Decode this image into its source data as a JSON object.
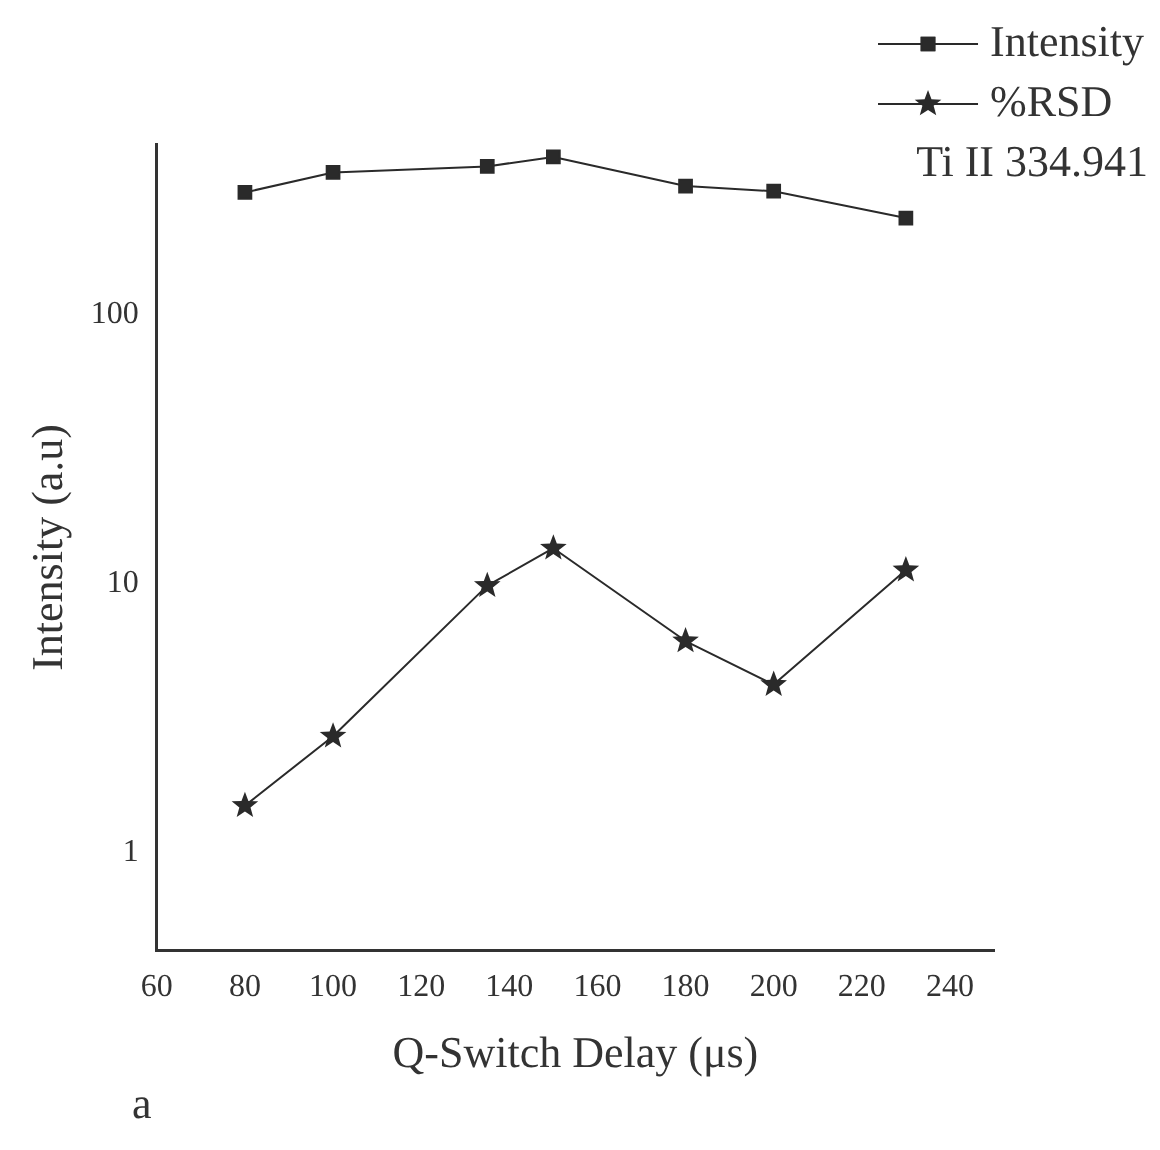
{
  "chart_data": {
    "type": "line",
    "xlabel": "Q-Switch Delay (μs)",
    "ylabel": "Intensity (a.u)",
    "x": [
      80,
      100,
      135,
      150,
      180,
      200,
      230
    ],
    "series": [
      {
        "name": "Intensity",
        "color": "#2a2a2a",
        "marker": "square",
        "values": [
          284,
          337,
          355,
          385,
          300,
          287,
          228
        ]
      },
      {
        "name": "%RSD",
        "color": "#2a2a2a",
        "marker": "star",
        "values": [
          1.49,
          2.7,
          9.8,
          13.5,
          6.1,
          4.2,
          11.2
        ]
      }
    ],
    "log": "y",
    "xlim": [
      60,
      250
    ],
    "xticks": [
      60,
      80,
      100,
      120,
      140,
      160,
      180,
      200,
      220,
      240
    ],
    "ylim": [
      0.43,
      430
    ],
    "yticks": [
      1,
      10,
      100
    ],
    "grid": false,
    "legend": "top right",
    "line_style": "solid",
    "annotations": [
      "Ti II 334.941",
      "a"
    ]
  }
}
